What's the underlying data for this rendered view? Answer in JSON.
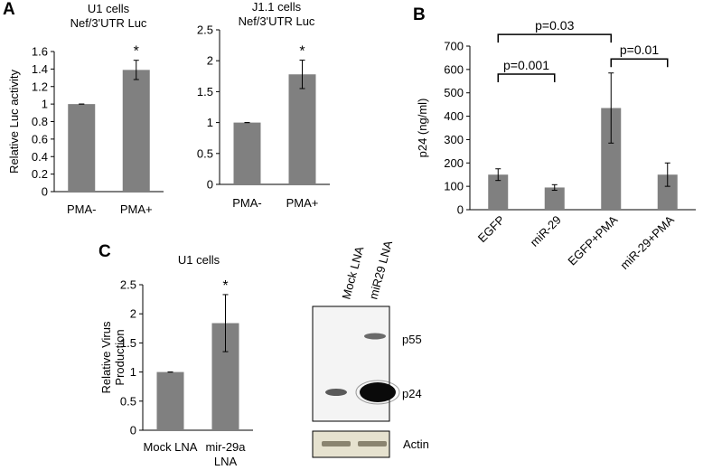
{
  "panels": {
    "A": "A",
    "B": "B",
    "C": "C"
  },
  "chart_data": [
    {
      "id": "A1",
      "type": "bar",
      "title_lines": [
        "U1 cells",
        "Nef/3'UTR Luc"
      ],
      "ylabel": "Relative Luc activity",
      "ylim": [
        0,
        1.6
      ],
      "yticks": [
        "0",
        "0.2",
        "0.4",
        "0.6",
        "0.8",
        "1",
        "1.2",
        "1.4",
        "1.6"
      ],
      "categories": [
        "PMA-",
        "PMA+"
      ],
      "values": [
        1.0,
        1.39
      ],
      "errors": [
        0.0,
        0.11
      ],
      "annotations": [
        "",
        "*"
      ],
      "bar_color": "#808080"
    },
    {
      "id": "A2",
      "type": "bar",
      "title_lines": [
        "J1.1 cells",
        "Nef/3'UTR Luc"
      ],
      "ylabel": "",
      "ylim": [
        0,
        2.5
      ],
      "yticks": [
        "0",
        "0.5",
        "1",
        "1.5",
        "2",
        "2.5"
      ],
      "categories": [
        "PMA-",
        "PMA+"
      ],
      "values": [
        1.0,
        1.78
      ],
      "errors": [
        0.0,
        0.23
      ],
      "annotations": [
        "",
        "*"
      ],
      "bar_color": "#808080"
    },
    {
      "id": "B",
      "type": "bar",
      "title_lines": [],
      "ylabel": "p24 (ng/ml)",
      "ylim": [
        0,
        700
      ],
      "yticks": [
        "0",
        "100",
        "200",
        "300",
        "400",
        "500",
        "600",
        "700"
      ],
      "categories": [
        "EGFP",
        "miR-29",
        "EGFP+PMA",
        "miR-29+PMA"
      ],
      "values": [
        150,
        95,
        435,
        150
      ],
      "errors": [
        25,
        12,
        150,
        50
      ],
      "brackets": [
        {
          "from": 0,
          "to": 1,
          "label": "p=0.001"
        },
        {
          "from": 0,
          "to": 2,
          "label": "p=0.03"
        },
        {
          "from": 2,
          "to": 3,
          "label": "p=0.01"
        }
      ],
      "bar_color": "#808080"
    },
    {
      "id": "C",
      "type": "bar",
      "title_lines": [
        "U1 cells"
      ],
      "ylabel_lines": [
        "Relative Virus",
        "Production"
      ],
      "ylim": [
        0,
        2.5
      ],
      "yticks": [
        "0",
        "0.5",
        "1",
        "1.5",
        "2",
        "2.5"
      ],
      "categories": [
        [
          "Mock LNA"
        ],
        [
          "mir-29a",
          "LNA"
        ]
      ],
      "values": [
        1.0,
        1.84
      ],
      "errors": [
        0.0,
        0.49
      ],
      "annotations": [
        "",
        "*"
      ],
      "bar_color": "#808080"
    }
  ],
  "blot": {
    "lanes": [
      "Mock LNA",
      "miR29 LNA"
    ],
    "bands": [
      "p55",
      "p24"
    ],
    "loading_control": "Actin"
  }
}
